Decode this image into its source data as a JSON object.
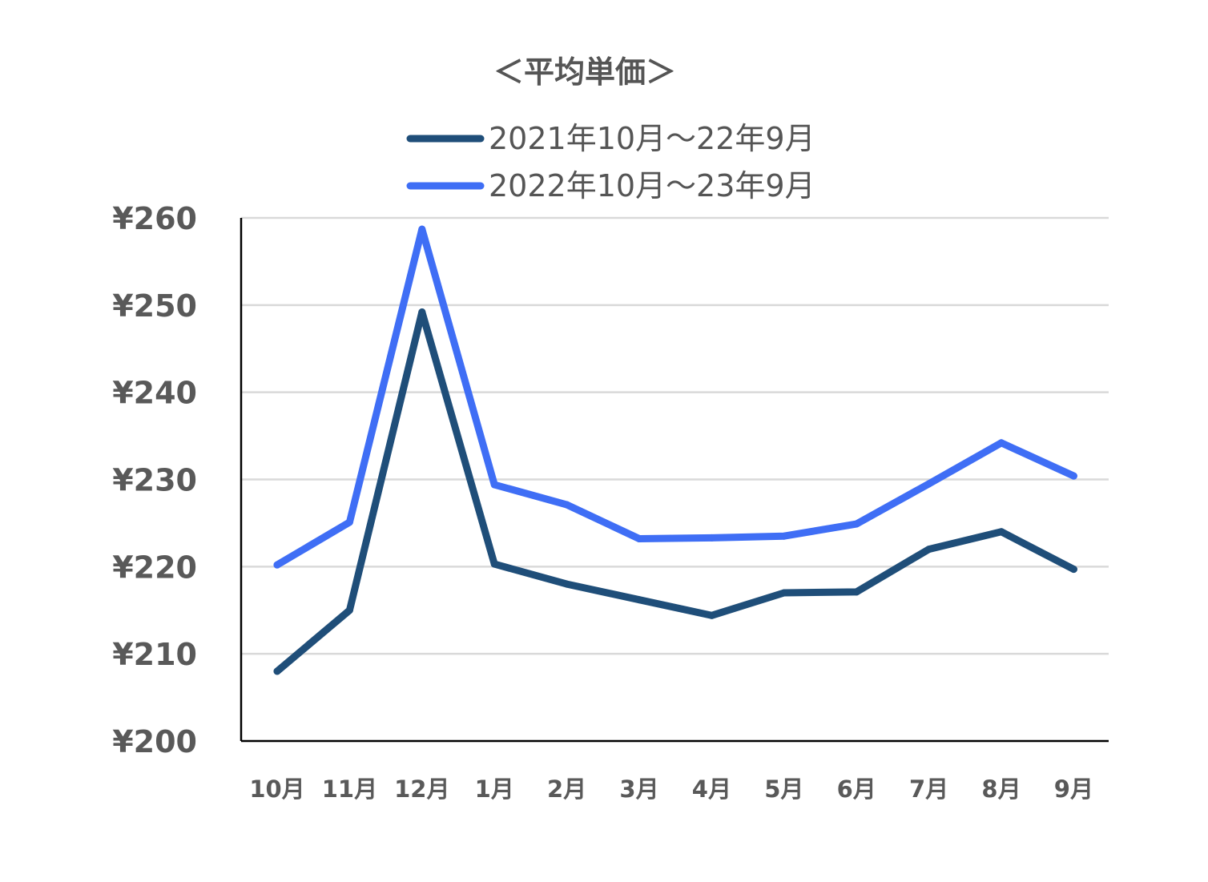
{
  "chart_data": {
    "type": "line",
    "title": "＜平均単価＞",
    "categories": [
      "10月",
      "11月",
      "12月",
      "1月",
      "2月",
      "3月",
      "4月",
      "5月",
      "6月",
      "7月",
      "8月",
      "9月"
    ],
    "series": [
      {
        "name": "2021年10月～22年9月",
        "color": "#1f4e79",
        "values": [
          208,
          215,
          249.2,
          220.3,
          218,
          216.2,
          214.4,
          217,
          217.1,
          222,
          224,
          219.7
        ]
      },
      {
        "name": "2022年10月～23年9月",
        "color": "#3f6ef5",
        "values": [
          220.2,
          225.1,
          258.7,
          229.4,
          227.1,
          223.2,
          223.3,
          223.5,
          224.9,
          229.5,
          234.2,
          230.4
        ]
      }
    ],
    "y_ticks": [
      "¥200",
      "¥210",
      "¥220",
      "¥230",
      "¥240",
      "¥250",
      "¥260"
    ],
    "ylim": [
      200,
      260
    ],
    "grid": true,
    "legend_position": "top"
  }
}
